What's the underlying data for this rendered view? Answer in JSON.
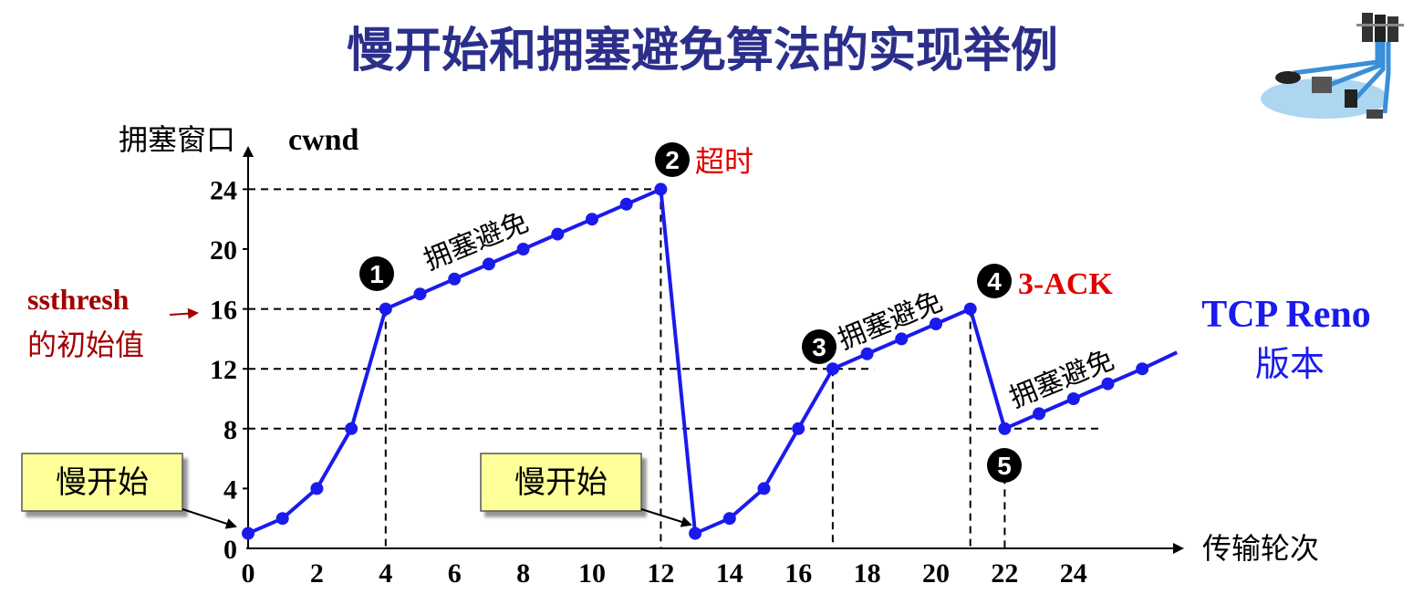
{
  "title": "慢开始和拥塞避免算法的实现举例",
  "chart_data": {
    "type": "line",
    "ylabel_cn": "拥塞窗口",
    "ylabel_en": "cwnd",
    "xlabel": "传输轮次",
    "xlim": [
      0,
      26
    ],
    "ylim": [
      0,
      26
    ],
    "x_ticks": [
      0,
      2,
      4,
      6,
      8,
      10,
      12,
      14,
      16,
      18,
      20,
      22,
      24
    ],
    "y_ticks": [
      0,
      4,
      8,
      12,
      16,
      20,
      24
    ],
    "series": [
      {
        "name": "TCP Reno",
        "color": "#1a1aee",
        "x": [
          0,
          1,
          2,
          3,
          4,
          5,
          6,
          7,
          8,
          9,
          10,
          11,
          12,
          13,
          14,
          15,
          16,
          17,
          18,
          19,
          20,
          21,
          22,
          23,
          24,
          25,
          26
        ],
        "y": [
          1,
          2,
          4,
          8,
          16,
          17,
          18,
          19,
          20,
          21,
          22,
          23,
          24,
          1,
          2,
          4,
          8,
          12,
          13,
          14,
          15,
          16,
          8,
          9,
          10,
          11,
          12
        ],
        "continues_after_last": true
      }
    ],
    "annotations": {
      "ssthresh_label_1": "ssthresh",
      "ssthresh_label_2": "的初始值",
      "phase_label": "拥塞避免",
      "timeout_label": "超时",
      "three_ack_label": "3-ACK",
      "reno_label_1": "TCP Reno",
      "reno_label_2": "版本",
      "slow_start_label": "慢开始",
      "markers": [
        "1",
        "2",
        "3",
        "4",
        "5"
      ]
    }
  }
}
